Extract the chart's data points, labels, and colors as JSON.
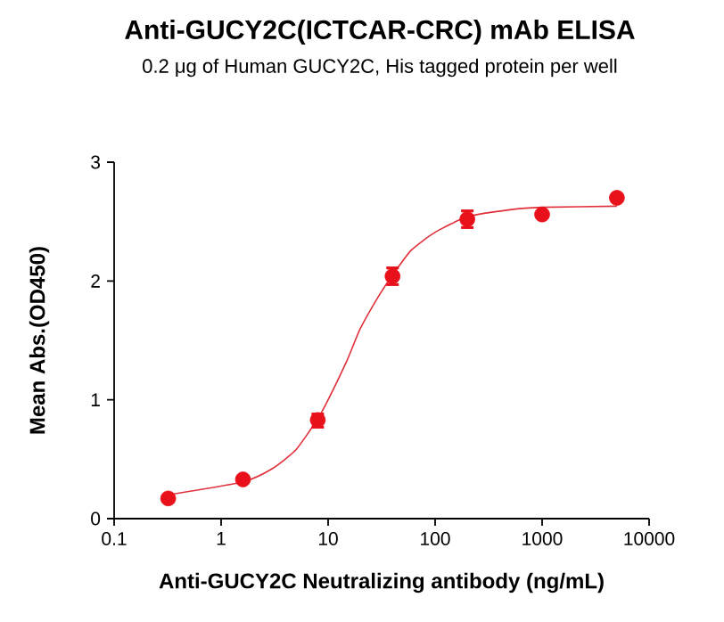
{
  "chart_data": {
    "type": "scatter",
    "title": "Anti-GUCY2C(ICTCAR-CRC) mAb ELISA",
    "subtitle": "0.2 μg of Human GUCY2C, His tagged protein per well",
    "xlabel": "Anti-GUCY2C Neutralizing antibody  (ng/mL)",
    "ylabel": "Mean Abs.(OD450)",
    "log": "x",
    "xlim": [
      0.1,
      10000
    ],
    "ylim": [
      0,
      3
    ],
    "xticks": [
      0.1,
      1,
      10,
      100,
      1000,
      10000
    ],
    "yticks": [
      0,
      1,
      2,
      3
    ],
    "series": [
      {
        "type": "line",
        "color": "#e0303a",
        "marker": "none",
        "x": [
          0.32,
          1.6,
          3,
          5,
          8,
          10,
          15,
          20,
          30,
          40,
          60,
          100,
          200,
          500,
          1000,
          5000
        ],
        "values": [
          0.2,
          0.31,
          0.42,
          0.58,
          0.84,
          1.0,
          1.33,
          1.6,
          1.88,
          2.05,
          2.26,
          2.41,
          2.54,
          2.6,
          2.62,
          2.63
        ]
      },
      {
        "color": "#e8101a",
        "marker": "circle",
        "x": [
          0.32,
          1.6,
          8,
          40,
          200,
          1000,
          5000
        ],
        "values": [
          0.17,
          0.33,
          0.83,
          2.04,
          2.52,
          2.56,
          2.7
        ],
        "errors": [
          null,
          null,
          [
            0.77,
            0.88
          ],
          0.07,
          0.07,
          null,
          null
        ]
      }
    ]
  }
}
